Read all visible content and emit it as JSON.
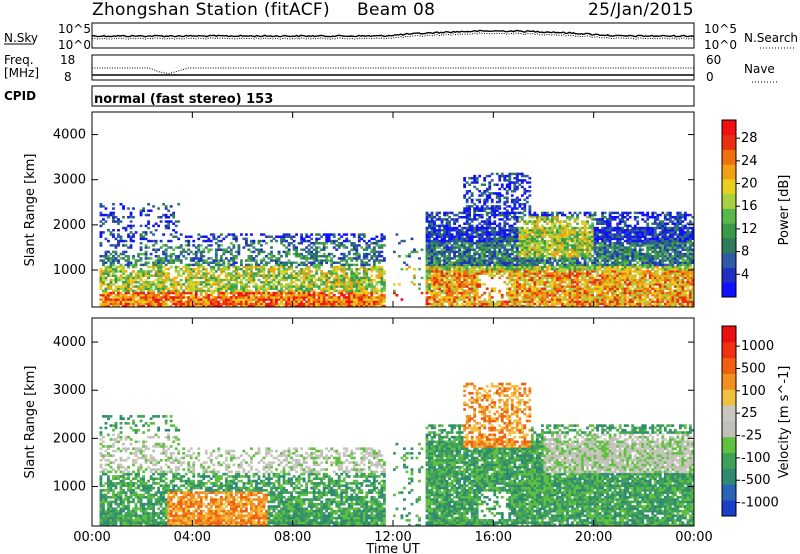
{
  "header": {
    "station": "Zhongshan Station (fitACF)",
    "beam": "Beam 08",
    "date": "25/Jan/2015"
  },
  "strips": {
    "nsky_label": "N.Sky",
    "nsearch_label": "N.Search",
    "nsky_ticks": [
      "10^5",
      "10^0"
    ],
    "nsearch_ticks": [
      "10^5",
      "10^0"
    ],
    "freq_label_1": "Freq.",
    "freq_label_2": "[MHz]",
    "freq_ticks": [
      "18",
      "8"
    ],
    "nave_ticks": [
      "60",
      "0"
    ],
    "nave_label": "Nave",
    "cpid_label": "CPID",
    "cpid_text": "normal (fast stereo) 153"
  },
  "chart_data": [
    {
      "type": "heatmap",
      "name": "power",
      "ylabel": "Slant Range [km]",
      "ylim": [
        180,
        4500
      ],
      "yticks": [
        1000,
        2000,
        3000,
        4000
      ],
      "xlim": [
        0,
        24
      ],
      "xticks": [
        0,
        4,
        8,
        12,
        16,
        20,
        24
      ],
      "colorbar": {
        "label": "Power [dB]",
        "ticks": [
          "4",
          "8",
          "12",
          "16",
          "20",
          "24",
          "28"
        ],
        "colors": [
          "#1010ff",
          "#2030c0",
          "#2e5aa6",
          "#2f7a5a",
          "#3a9a48",
          "#5ab84a",
          "#a8d040",
          "#e8d020",
          "#f0a010",
          "#f07010",
          "#e83010",
          "#f01010"
        ]
      },
      "description_bands": [
        {
          "t": [
            0.3,
            11.6
          ],
          "r": [
            200,
            400
          ],
          "level": "high"
        },
        {
          "t": [
            0.3,
            11.6
          ],
          "r": [
            400,
            1800
          ],
          "level": "mixed"
        },
        {
          "t": [
            13.8,
            23.9
          ],
          "r": [
            200,
            1900
          ],
          "level": "mixed"
        },
        {
          "t": [
            15.0,
            17.6
          ],
          "r": [
            1800,
            3100
          ],
          "level": "low"
        }
      ]
    },
    {
      "type": "heatmap",
      "name": "velocity",
      "ylabel": "Slant Range [km]",
      "xlabel": "Time UT",
      "ylim": [
        180,
        4500
      ],
      "yticks": [
        1000,
        2000,
        3000,
        4000
      ],
      "xlim": [
        0,
        24
      ],
      "xticks": [
        0,
        4,
        8,
        12,
        16,
        20,
        24
      ],
      "xtick_labels": [
        "00:00",
        "04:00",
        "08:00",
        "12:00",
        "16:00",
        "20:00",
        "00:00"
      ],
      "colorbar": {
        "label": "Velocity [m s^-1]",
        "ticks": [
          "1000",
          "500",
          "100",
          "25",
          "-25",
          "-100",
          "-500",
          "-1000"
        ],
        "colors": [
          "#1a3ec8",
          "#2a64b8",
          "#2f8a72",
          "#3fa05a",
          "#60c040",
          "#c0c0b8",
          "#c8c8c0",
          "#f0c040",
          "#f09020",
          "#f06010",
          "#f03010",
          "#e81010"
        ]
      }
    }
  ],
  "series_colors": {
    "ground": "#c0c0b8",
    "nsky": "#000000"
  }
}
